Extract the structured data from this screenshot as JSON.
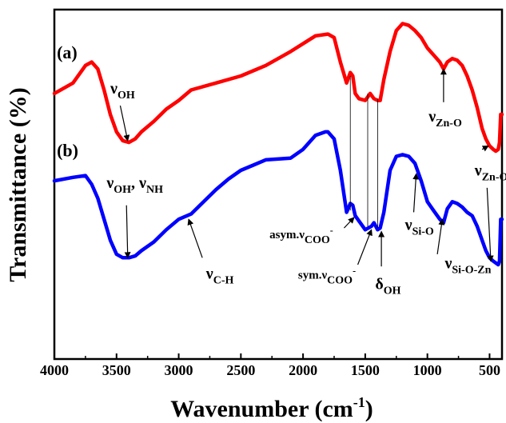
{
  "chart_data": {
    "type": "line",
    "xlabel": "Wavenumber (cm",
    "xlabel_sup": "-1",
    "xlabel_end": ")",
    "ylabel": "Transmittance (%)",
    "xlim": [
      4000,
      400
    ],
    "ylim": [
      0,
      100
    ],
    "x_reversed": true,
    "grid": false,
    "legend": "none",
    "x_ticks": [
      4000,
      3500,
      3000,
      2500,
      2000,
      1500,
      1000,
      500
    ],
    "x_tick_labels": [
      "4000",
      "3500",
      "3000",
      "2500",
      "2000",
      "1500",
      "1000",
      "500"
    ],
    "series": [
      {
        "label": "(a)",
        "color": "#ff0000",
        "x": [
          4000,
          3850,
          3750,
          3700,
          3650,
          3600,
          3550,
          3500,
          3450,
          3400,
          3350,
          3300,
          3200,
          3100,
          3000,
          2900,
          2700,
          2500,
          2300,
          2100,
          1900,
          1800,
          1750,
          1700,
          1650,
          1620,
          1600,
          1580,
          1550,
          1500,
          1460,
          1430,
          1400,
          1380,
          1350,
          1300,
          1250,
          1200,
          1150,
          1100,
          1050,
          1000,
          950,
          900,
          870,
          840,
          800,
          760,
          720,
          680,
          640,
          600,
          560,
          530,
          500,
          470,
          450,
          430,
          420,
          410,
          400
        ],
        "y": [
          76,
          79,
          84,
          85,
          83,
          77,
          70,
          65,
          62.5,
          62,
          63,
          65,
          68,
          71.5,
          74,
          77,
          79,
          81,
          84,
          88,
          92.5,
          93,
          92,
          85,
          79,
          82,
          81,
          76,
          74.5,
          74,
          76,
          74.5,
          74,
          74,
          80,
          88,
          94,
          96,
          95.5,
          94,
          92,
          89,
          87,
          85,
          83,
          85,
          86,
          85.5,
          84,
          81,
          77,
          72,
          66,
          63,
          61,
          60,
          59.5,
          60,
          62,
          70,
          70
        ]
      },
      {
        "label": "(b)",
        "color": "#0000ff",
        "x": [
          4000,
          3850,
          3750,
          3700,
          3650,
          3600,
          3550,
          3500,
          3450,
          3400,
          3350,
          3300,
          3200,
          3100,
          3000,
          2900,
          2800,
          2700,
          2600,
          2500,
          2400,
          2300,
          2100,
          2000,
          1900,
          1820,
          1800,
          1750,
          1700,
          1650,
          1620,
          1600,
          1580,
          1550,
          1500,
          1450,
          1430,
          1400,
          1380,
          1350,
          1300,
          1250,
          1200,
          1150,
          1100,
          1050,
          1000,
          950,
          900,
          870,
          840,
          800,
          760,
          720,
          680,
          640,
          600,
          560,
          530,
          500,
          470,
          450,
          430,
          420,
          410,
          400
        ],
        "y": [
          51,
          52,
          52.5,
          50,
          46,
          40,
          34,
          30,
          29,
          29,
          29.5,
          31,
          33.5,
          37,
          40,
          41.5,
          45,
          48.5,
          51.5,
          54,
          55.5,
          57,
          57.5,
          60,
          64,
          65,
          65,
          63,
          54,
          42,
          44.5,
          44,
          41,
          39.5,
          37,
          38,
          39,
          37,
          37.5,
          42,
          54,
          58,
          58.5,
          58,
          56,
          51,
          45,
          42.5,
          40,
          39,
          43,
          45,
          44.5,
          43.5,
          42,
          41,
          38,
          34,
          31,
          29,
          28,
          27.5,
          27,
          28,
          40,
          40
        ]
      }
    ],
    "annotations": [
      {
        "type": "label",
        "text": "(a)",
        "x": 3980,
        "y": 86
      },
      {
        "type": "label",
        "text": "(b)",
        "x": 3980,
        "y": 58
      },
      {
        "type": "label",
        "text": "ν",
        "sub": "OH",
        "x": 3550,
        "y": 76
      },
      {
        "type": "arrow",
        "from": [
          3470,
          72.5
        ],
        "to": [
          3410,
          62.5
        ]
      },
      {
        "type": "label",
        "text": "ν",
        "sub": "OH",
        "text2": ", ν",
        "sub2": "NH",
        "x": 3580,
        "y": 49
      },
      {
        "type": "arrow",
        "from": [
          3420,
          44
        ],
        "to": [
          3410,
          29
        ]
      },
      {
        "type": "label",
        "text": "ν",
        "sub": "C-H",
        "x": 2780,
        "y": 23
      },
      {
        "type": "arrow",
        "from": [
          2810,
          29
        ],
        "to": [
          2920,
          40
        ]
      },
      {
        "type": "label",
        "text": "asym.ν",
        "sub": "COO",
        "sup": "-",
        "x": 2270,
        "y": 34.5
      },
      {
        "type": "arrow",
        "from": [
          1670,
          37.5
        ],
        "to": [
          1590,
          40.5
        ]
      },
      {
        "type": "label",
        "text": "sym.ν",
        "sub": "COO",
        "sup": "-",
        "x": 2040,
        "y": 23
      },
      {
        "type": "arrow",
        "from": [
          1560,
          27
        ],
        "to": [
          1450,
          37
        ]
      },
      {
        "type": "label",
        "text": "δ",
        "sub": "OH",
        "x": 1420,
        "y": 20
      },
      {
        "type": "arrow",
        "from": [
          1370,
          26.5
        ],
        "to": [
          1370,
          36.5
        ]
      },
      {
        "type": "label",
        "text": "ν",
        "sub": "Si-O",
        "x": 1180,
        "y": 37
      },
      {
        "type": "arrow",
        "from": [
          1110,
          42
        ],
        "to": [
          1090,
          53
        ]
      },
      {
        "type": "label",
        "text": "ν",
        "sub": "Si-O-Zn",
        "x": 860,
        "y": 26
      },
      {
        "type": "arrow",
        "from": [
          920,
          30
        ],
        "to": [
          880,
          40
        ]
      },
      {
        "type": "label",
        "text": "ν",
        "sub": "Zn-O",
        "x": 990,
        "y": 68
      },
      {
        "type": "arrow",
        "from": [
          870,
          73.5
        ],
        "to": [
          870,
          83
        ]
      },
      {
        "type": "label",
        "text": "ν",
        "sub": "Zn-O",
        "x": 620,
        "y": 52.5
      },
      {
        "type": "arrow",
        "from": [
          560,
          60
        ],
        "to": [
          510,
          61
        ]
      },
      {
        "type": "arrow",
        "from": [
          520,
          49
        ],
        "to": [
          490,
          28
        ]
      },
      {
        "type": "line",
        "from": [
          1620,
          81
        ],
        "to": [
          1620,
          42.5
        ]
      },
      {
        "type": "line",
        "from": [
          1480,
          76
        ],
        "to": [
          1480,
          38
        ]
      },
      {
        "type": "line",
        "from": [
          1400,
          74.5
        ],
        "to": [
          1400,
          37.5
        ]
      }
    ]
  }
}
